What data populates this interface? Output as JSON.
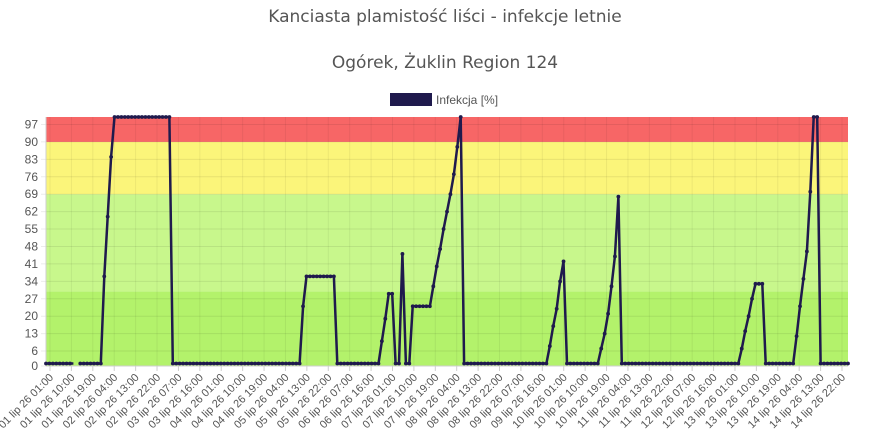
{
  "chart_data": {
    "type": "line",
    "title": "Kanciasta plamistość liści - infekcje letnie",
    "subtitle": "Ogórek, Żuklin Region 124",
    "legend": {
      "label": "Infekcja [%]",
      "position": "top-center"
    },
    "series_color": "#1f1a4d",
    "bands": [
      {
        "from": 0,
        "to": 30,
        "color": "#b3f26b"
      },
      {
        "from": 30,
        "to": 69,
        "color": "#c8f78c"
      },
      {
        "from": 69,
        "to": 90,
        "color": "#fbf57a"
      },
      {
        "from": 90,
        "to": 100,
        "color": "#f76666"
      }
    ],
    "yticks": [
      0,
      6,
      13,
      20,
      27,
      34,
      41,
      48,
      55,
      62,
      69,
      76,
      83,
      90,
      97
    ],
    "ylim": [
      0,
      100
    ],
    "xlabels": [
      "01 lip 26 01:00",
      "01 lip 26 10:00",
      "01 lip 26 19:00",
      "02 lip 26 04:00",
      "02 lip 26 13:00",
      "02 lip 26 22:00",
      "03 lip 26 07:00",
      "03 lip 26 16:00",
      "04 lip 26 01:00",
      "04 lip 26 10:00",
      "04 lip 26 19:00",
      "05 lip 26 04:00",
      "05 lip 26 13:00",
      "05 lip 26 22:00",
      "06 lip 26 07:00",
      "06 lip 26 16:00",
      "07 lip 26 01:00",
      "07 lip 26 10:00",
      "07 lip 26 19:00",
      "08 lip 26 04:00",
      "08 lip 26 13:00",
      "08 lip 26 22:00",
      "09 lip 26 07:00",
      "09 lip 26 16:00",
      "10 lip 26 01:00",
      "10 lip 26 10:00",
      "10 lip 26 19:00",
      "11 lip 26 04:00",
      "11 lip 26 13:00",
      "11 lip 26 22:00",
      "12 lip 26 07:00",
      "12 lip 26 16:00",
      "13 lip 26 01:00",
      "13 lip 26 10:00",
      "13 lip 26 19:00",
      "14 lip 26 04:00",
      "14 lip 26 13:00",
      "14 lip 26 22:00"
    ],
    "x_hours_span": 333,
    "points": [
      [
        0,
        1
      ],
      [
        8,
        1
      ],
      [
        9,
        null
      ],
      [
        10,
        1
      ],
      [
        16,
        1
      ],
      [
        17,
        36
      ],
      [
        18,
        60
      ],
      [
        19,
        84
      ],
      [
        20,
        100
      ],
      [
        36,
        100
      ],
      [
        37,
        1
      ],
      [
        74,
        1
      ],
      [
        75,
        24
      ],
      [
        76,
        36
      ],
      [
        84,
        36
      ],
      [
        85,
        1
      ],
      [
        97,
        1
      ],
      [
        98,
        10
      ],
      [
        99,
        19
      ],
      [
        100,
        29
      ],
      [
        101,
        29
      ],
      [
        102,
        1
      ],
      [
        103,
        1
      ],
      [
        104,
        45
      ],
      [
        105,
        1
      ],
      [
        106,
        1
      ],
      [
        107,
        24
      ],
      [
        112,
        24
      ],
      [
        113,
        32
      ],
      [
        114,
        40
      ],
      [
        115,
        47
      ],
      [
        116,
        55
      ],
      [
        117,
        62
      ],
      [
        118,
        69
      ],
      [
        119,
        77
      ],
      [
        120,
        88
      ],
      [
        121,
        100
      ],
      [
        122,
        1
      ],
      [
        146,
        1
      ],
      [
        147,
        8
      ],
      [
        148,
        16
      ],
      [
        149,
        23
      ],
      [
        150,
        34
      ],
      [
        151,
        42
      ],
      [
        152,
        1
      ],
      [
        161,
        1
      ],
      [
        162,
        7
      ],
      [
        163,
        13
      ],
      [
        164,
        21
      ],
      [
        165,
        32
      ],
      [
        166,
        44
      ],
      [
        167,
        68
      ],
      [
        168,
        1
      ],
      [
        202,
        1
      ],
      [
        203,
        7
      ],
      [
        204,
        14
      ],
      [
        205,
        20
      ],
      [
        206,
        27
      ],
      [
        207,
        33
      ],
      [
        209,
        33
      ],
      [
        210,
        1
      ],
      [
        218,
        1
      ],
      [
        219,
        12
      ],
      [
        220,
        24
      ],
      [
        221,
        35
      ],
      [
        222,
        46
      ],
      [
        223,
        70
      ],
      [
        224,
        100
      ],
      [
        225,
        100
      ],
      [
        226,
        1
      ],
      [
        234,
        1
      ]
    ]
  }
}
